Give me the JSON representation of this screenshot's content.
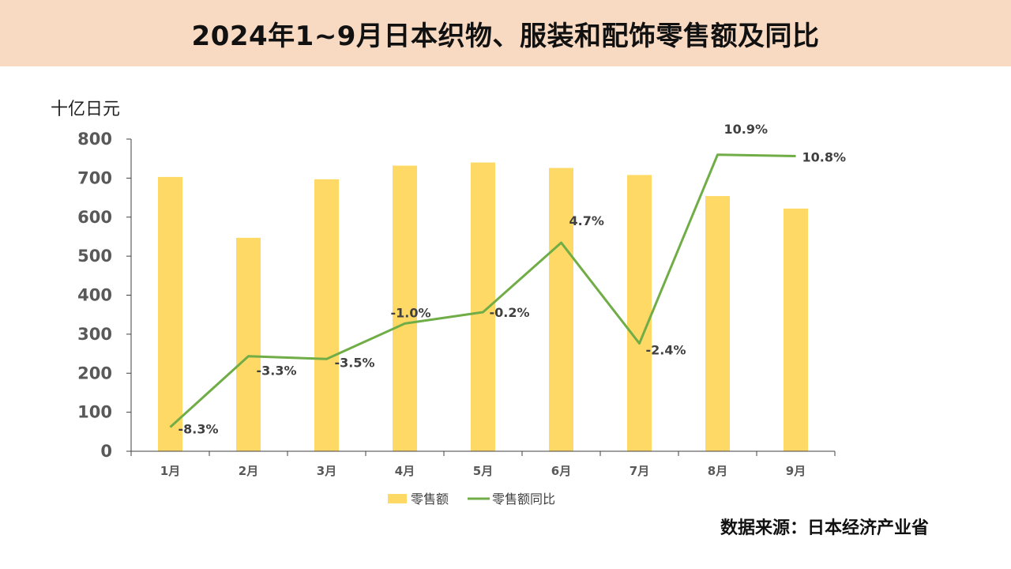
{
  "header": {
    "title": "2024年1~9月日本织物、服装和配饰零售额及同比"
  },
  "unit_label": "十亿日元",
  "source_note": "数据来源：日本经济产业省",
  "chart_data": {
    "type": "bar",
    "categories": [
      "1月",
      "2月",
      "3月",
      "4月",
      "5月",
      "6月",
      "7月",
      "8月",
      "9月"
    ],
    "series": [
      {
        "name": "零售额",
        "kind": "bar",
        "axis": "left",
        "color": "#ffd966",
        "values": [
          703,
          547,
          697,
          732,
          740,
          726,
          708,
          654,
          622
        ]
      },
      {
        "name": "零售额同比",
        "kind": "line",
        "axis": "secondary",
        "color": "#70ad47",
        "values": [
          -8.3,
          -3.3,
          -3.5,
          -1.0,
          -0.2,
          4.7,
          -2.4,
          10.9,
          10.8
        ],
        "labels": [
          "-8.3%",
          "-3.3%",
          "-3.5%",
          "-1.0%",
          "-0.2%",
          "4.7%",
          "-2.4%",
          "10.9%",
          "10.8%"
        ]
      }
    ],
    "ylim": [
      0,
      800
    ],
    "yticks": [
      0,
      100,
      200,
      300,
      400,
      500,
      600,
      700,
      800
    ],
    "secondary_ylim": [
      -10,
      12
    ],
    "legend_position": "bottom",
    "grid": false
  }
}
